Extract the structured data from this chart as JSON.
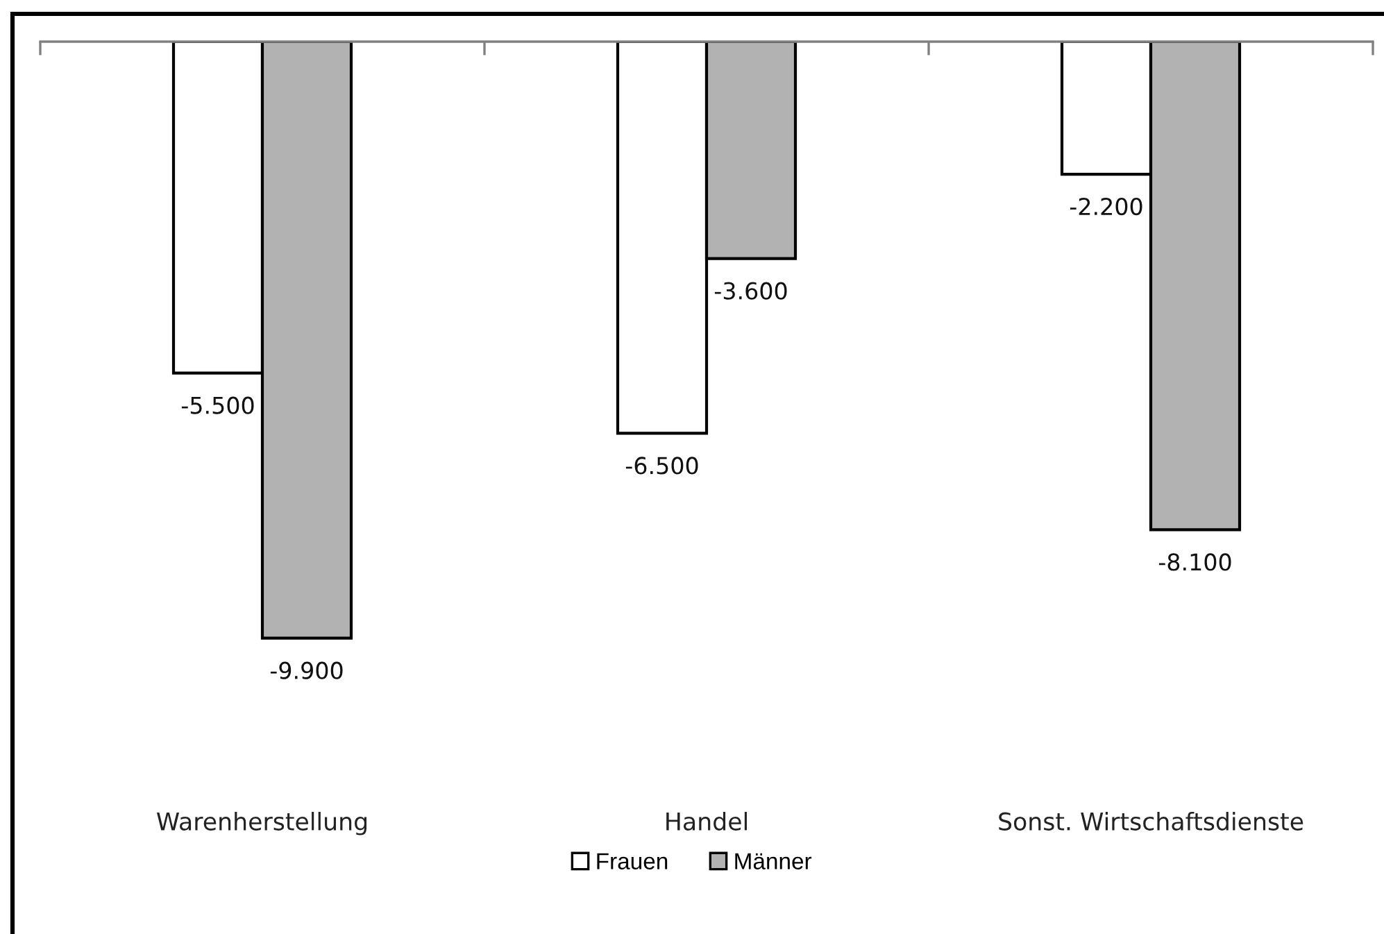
{
  "chart_data": {
    "type": "bar",
    "categories": [
      "Warenherstellung",
      "Handel",
      "Sonst. Wirtschaftsdienste"
    ],
    "series": [
      {
        "name": "Frauen",
        "color": "#ffffff",
        "values": [
          -5500,
          -6500,
          -2200
        ],
        "value_labels": [
          "-5.500",
          "-6.500",
          "-2.200"
        ]
      },
      {
        "name": "Männer",
        "color": "#b2b2b2",
        "values": [
          -9900,
          -3600,
          -8100
        ],
        "value_labels": [
          "-9.900",
          "-3.600",
          "-8.100"
        ]
      }
    ],
    "legend": "bottom"
  }
}
